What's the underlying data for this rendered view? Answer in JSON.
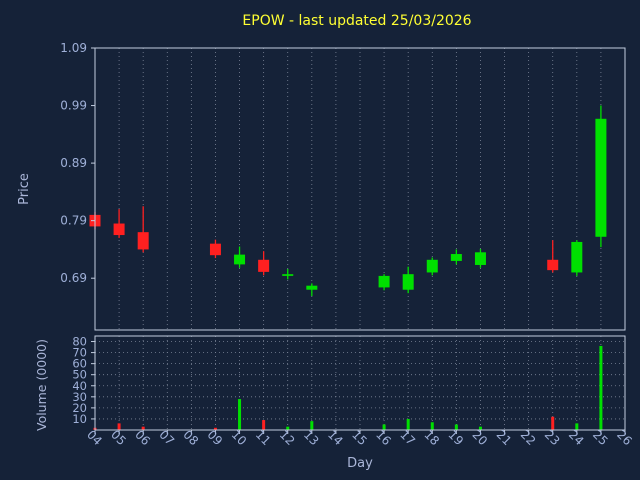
{
  "title": "EPOW - last updated 25/03/2026",
  "colors": {
    "background": "#152238",
    "up": "#00e000",
    "down": "#ff2020",
    "title": "#ffff33",
    "tick_label": "#9fb0d8",
    "axis_label": "#aab6d8",
    "grid": "#7d8699",
    "border": "#c2cde0"
  },
  "chart_data": {
    "type": "candlestick",
    "title": "EPOW - last updated 25/03/2026",
    "xlabel": "Day",
    "ylabel": "Price",
    "volume_label": "Volume (0000)",
    "x_ticks": [
      "04",
      "05",
      "06",
      "07",
      "08",
      "09",
      "10",
      "11",
      "12",
      "13",
      "14",
      "15",
      "16",
      "17",
      "18",
      "19",
      "20",
      "21",
      "22",
      "23",
      "24",
      "25",
      "26"
    ],
    "price_ticks": [
      "0.69",
      "0.79",
      "0.89",
      "0.99",
      "1.09"
    ],
    "volume_ticks": [
      "10",
      "20",
      "30",
      "40",
      "50",
      "60",
      "70",
      "80"
    ],
    "x_range": [
      4,
      26
    ],
    "price_range": [
      0.6,
      1.09
    ],
    "volume_range": [
      0,
      85
    ],
    "grid": "vertical-dotted; volume panel also horizontal-dotted",
    "legend": "none",
    "days": [
      {
        "day": 4,
        "open": 0.8,
        "high": 0.805,
        "low": 0.775,
        "close": 0.78,
        "volume": 2
      },
      {
        "day": 5,
        "open": 0.785,
        "high": 0.81,
        "low": 0.76,
        "close": 0.765,
        "volume": 6
      },
      {
        "day": 6,
        "open": 0.77,
        "high": 0.815,
        "low": 0.735,
        "close": 0.74,
        "volume": 3
      },
      {
        "day": 9,
        "open": 0.75,
        "high": 0.757,
        "low": 0.725,
        "close": 0.73,
        "volume": 2
      },
      {
        "day": 10,
        "open": 0.714,
        "high": 0.745,
        "low": 0.708,
        "close": 0.731,
        "volume": 28
      },
      {
        "day": 11,
        "open": 0.722,
        "high": 0.737,
        "low": 0.695,
        "close": 0.701,
        "volume": 9
      },
      {
        "day": 12,
        "open": 0.694,
        "high": 0.706,
        "low": 0.688,
        "close": 0.697,
        "volume": 3
      },
      {
        "day": 13,
        "open": 0.67,
        "high": 0.681,
        "low": 0.659,
        "close": 0.677,
        "volume": 8
      },
      {
        "day": 16,
        "open": 0.674,
        "high": 0.697,
        "low": 0.669,
        "close": 0.694,
        "volume": 5
      },
      {
        "day": 17,
        "open": 0.67,
        "high": 0.71,
        "low": 0.664,
        "close": 0.697,
        "volume": 10
      },
      {
        "day": 18,
        "open": 0.7,
        "high": 0.726,
        "low": 0.695,
        "close": 0.722,
        "volume": 7
      },
      {
        "day": 19,
        "open": 0.72,
        "high": 0.74,
        "low": 0.714,
        "close": 0.732,
        "volume": 5
      },
      {
        "day": 20,
        "open": 0.713,
        "high": 0.741,
        "low": 0.708,
        "close": 0.735,
        "volume": 3
      },
      {
        "day": 23,
        "open": 0.722,
        "high": 0.756,
        "low": 0.7,
        "close": 0.704,
        "volume": 12
      },
      {
        "day": 24,
        "open": 0.7,
        "high": 0.756,
        "low": 0.694,
        "close": 0.753,
        "volume": 6
      },
      {
        "day": 25,
        "open": 0.762,
        "high": 0.99,
        "low": 0.744,
        "close": 0.967,
        "volume": 76
      }
    ]
  }
}
